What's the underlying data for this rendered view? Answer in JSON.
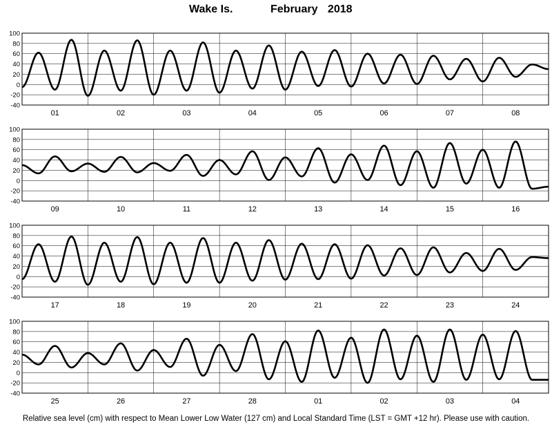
{
  "header": {
    "station": "Wake Is.",
    "period": "February 2018"
  },
  "footer": {
    "note": "Relative sea level (cm) with respect to Mean Lower Low Water (127 cm) and Local Standard Time (LST = GMT +12 hr). Please use with caution."
  },
  "chart_data": [
    {
      "type": "line",
      "days": [
        "01",
        "02",
        "03",
        "04",
        "05",
        "06",
        "07",
        "08"
      ],
      "y_ticks": [
        100,
        80,
        60,
        40,
        20,
        0,
        -20,
        -40
      ],
      "ylim": [
        -40,
        100
      ],
      "grid": true,
      "color": "#000000",
      "series": [
        {
          "values": [
            -5,
            62,
            -10,
            87,
            -22,
            66,
            -12,
            86,
            -20,
            66,
            -12,
            82,
            -16,
            66,
            -8,
            76,
            -10,
            64,
            -3,
            67,
            -4,
            60,
            2,
            58,
            1,
            56,
            10,
            50,
            6,
            52,
            15,
            39,
            30
          ]
        }
      ]
    },
    {
      "type": "line",
      "days": [
        "09",
        "10",
        "11",
        "12",
        "13",
        "14",
        "15",
        "16"
      ],
      "y_ticks": [
        100,
        80,
        60,
        40,
        20,
        0,
        -20,
        -40
      ],
      "ylim": [
        -40,
        100
      ],
      "grid": true,
      "color": "#000000",
      "series": [
        {
          "values": [
            30,
            14,
            47,
            18,
            33,
            17,
            46,
            16,
            34,
            19,
            50,
            9,
            40,
            12,
            57,
            1,
            45,
            8,
            63,
            -4,
            51,
            1,
            68,
            -9,
            57,
            -14,
            73,
            -6,
            60,
            -14,
            76,
            -16,
            -12
          ]
        }
      ]
    },
    {
      "type": "line",
      "days": [
        "17",
        "18",
        "19",
        "20",
        "21",
        "22",
        "23",
        "24"
      ],
      "y_ticks": [
        100,
        80,
        60,
        40,
        20,
        0,
        -20,
        -40
      ],
      "ylim": [
        -40,
        100
      ],
      "grid": true,
      "color": "#000000",
      "series": [
        {
          "values": [
            -5,
            63,
            -10,
            78,
            -16,
            66,
            -10,
            77,
            -15,
            66,
            -12,
            75,
            -12,
            66,
            -8,
            71,
            -6,
            64,
            -5,
            63,
            -4,
            61,
            2,
            55,
            3,
            57,
            8,
            46,
            11,
            54,
            13,
            38,
            36
          ]
        }
      ]
    },
    {
      "type": "line",
      "days": [
        "25",
        "26",
        "27",
        "28",
        "01",
        "02",
        "03",
        "04"
      ],
      "y_ticks": [
        100,
        80,
        60,
        40,
        20,
        0,
        -20,
        -40
      ],
      "ylim": [
        -40,
        100
      ],
      "grid": true,
      "color": "#000000",
      "series": [
        {
          "values": [
            35,
            16,
            52,
            10,
            38,
            16,
            57,
            4,
            44,
            11,
            66,
            -6,
            54,
            3,
            75,
            -13,
            61,
            -18,
            82,
            -10,
            68,
            -20,
            84,
            -13,
            72,
            -18,
            84,
            -14,
            74,
            -13,
            81,
            -14,
            -14
          ]
        }
      ]
    }
  ]
}
